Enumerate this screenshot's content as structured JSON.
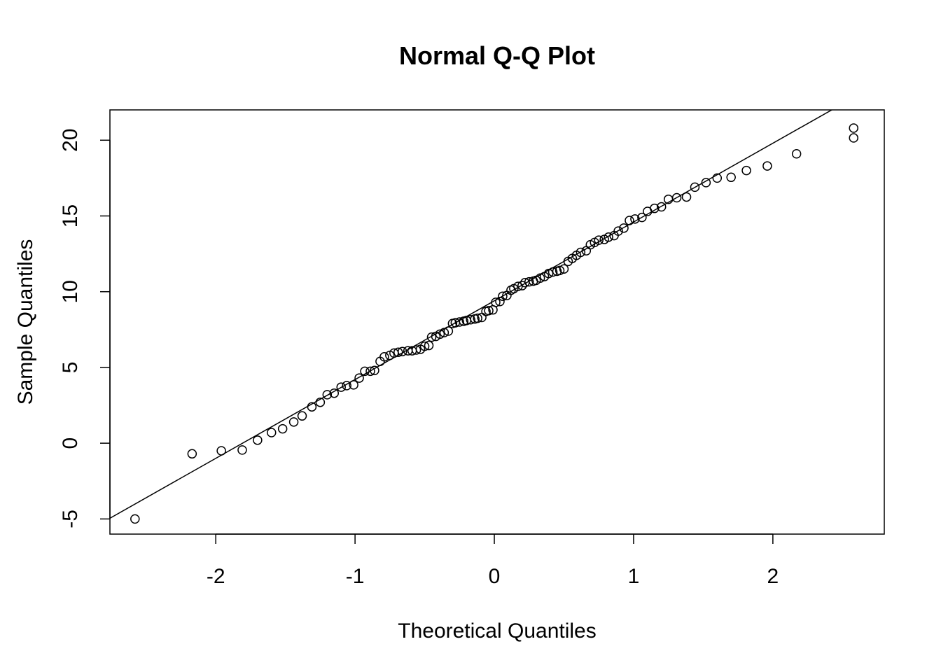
{
  "chart_data": {
    "type": "scatter",
    "title": "Normal Q-Q Plot",
    "xlabel": "Theoretical Quantiles",
    "ylabel": "Sample Quantiles",
    "xlim": [
      -2.76,
      2.8
    ],
    "ylim": [
      -6.0,
      22.0
    ],
    "xticks": [
      -2,
      -1,
      0,
      1,
      2
    ],
    "yticks": [
      -5,
      0,
      5,
      10,
      15,
      20
    ],
    "grid": false,
    "legend": "none",
    "marker": "open-circle",
    "reference_line": {
      "intercept": 9.4,
      "slope": 5.2
    },
    "series": [
      {
        "points": [
          [
            -2.58,
            -5.0
          ],
          [
            -2.17,
            -0.7
          ],
          [
            -1.96,
            -0.5
          ],
          [
            -1.81,
            -0.45
          ],
          [
            -1.7,
            0.2
          ],
          [
            -1.6,
            0.7
          ],
          [
            -1.52,
            0.95
          ],
          [
            -1.44,
            1.4
          ],
          [
            -1.38,
            1.8
          ],
          [
            -1.31,
            2.4
          ],
          [
            -1.25,
            2.7
          ],
          [
            -1.2,
            3.2
          ],
          [
            -1.15,
            3.3
          ],
          [
            -1.1,
            3.7
          ],
          [
            -1.06,
            3.8
          ],
          [
            -1.01,
            3.85
          ],
          [
            -0.97,
            4.3
          ],
          [
            -0.93,
            4.75
          ],
          [
            -0.89,
            4.75
          ],
          [
            -0.86,
            4.8
          ],
          [
            -0.82,
            5.4
          ],
          [
            -0.79,
            5.7
          ],
          [
            -0.75,
            5.8
          ],
          [
            -0.72,
            5.95
          ],
          [
            -0.69,
            6.0
          ],
          [
            -0.66,
            6.05
          ],
          [
            -0.62,
            6.1
          ],
          [
            -0.59,
            6.1
          ],
          [
            -0.56,
            6.15
          ],
          [
            -0.53,
            6.2
          ],
          [
            -0.5,
            6.4
          ],
          [
            -0.47,
            6.45
          ],
          [
            -0.45,
            7.0
          ],
          [
            -0.42,
            7.05
          ],
          [
            -0.39,
            7.2
          ],
          [
            -0.36,
            7.3
          ],
          [
            -0.33,
            7.4
          ],
          [
            -0.3,
            7.9
          ],
          [
            -0.28,
            7.95
          ],
          [
            -0.25,
            8.0
          ],
          [
            -0.22,
            8.05
          ],
          [
            -0.2,
            8.1
          ],
          [
            -0.17,
            8.15
          ],
          [
            -0.14,
            8.2
          ],
          [
            -0.12,
            8.25
          ],
          [
            -0.09,
            8.3
          ],
          [
            -0.06,
            8.7
          ],
          [
            -0.04,
            8.75
          ],
          [
            -0.01,
            8.8
          ],
          [
            0.01,
            9.3
          ],
          [
            0.04,
            9.35
          ],
          [
            0.06,
            9.7
          ],
          [
            0.09,
            9.75
          ],
          [
            0.12,
            10.1
          ],
          [
            0.14,
            10.2
          ],
          [
            0.17,
            10.35
          ],
          [
            0.2,
            10.4
          ],
          [
            0.22,
            10.6
          ],
          [
            0.25,
            10.65
          ],
          [
            0.28,
            10.7
          ],
          [
            0.3,
            10.75
          ],
          [
            0.33,
            10.9
          ],
          [
            0.36,
            11.0
          ],
          [
            0.39,
            11.2
          ],
          [
            0.42,
            11.3
          ],
          [
            0.45,
            11.35
          ],
          [
            0.47,
            11.4
          ],
          [
            0.5,
            11.5
          ],
          [
            0.53,
            12.0
          ],
          [
            0.56,
            12.2
          ],
          [
            0.59,
            12.4
          ],
          [
            0.62,
            12.6
          ],
          [
            0.66,
            12.7
          ],
          [
            0.69,
            13.1
          ],
          [
            0.72,
            13.25
          ],
          [
            0.75,
            13.4
          ],
          [
            0.79,
            13.45
          ],
          [
            0.82,
            13.6
          ],
          [
            0.86,
            13.7
          ],
          [
            0.89,
            14.0
          ],
          [
            0.93,
            14.2
          ],
          [
            0.97,
            14.7
          ],
          [
            1.01,
            14.8
          ],
          [
            1.06,
            14.9
          ],
          [
            1.1,
            15.3
          ],
          [
            1.15,
            15.5
          ],
          [
            1.2,
            15.6
          ],
          [
            1.25,
            16.1
          ],
          [
            1.31,
            16.2
          ],
          [
            1.38,
            16.25
          ],
          [
            1.44,
            16.9
          ],
          [
            1.52,
            17.2
          ],
          [
            1.6,
            17.5
          ],
          [
            1.7,
            17.55
          ],
          [
            1.81,
            18.0
          ],
          [
            1.96,
            18.3
          ],
          [
            2.17,
            19.1
          ],
          [
            2.58,
            20.15
          ],
          [
            2.58,
            20.8
          ]
        ]
      }
    ]
  }
}
